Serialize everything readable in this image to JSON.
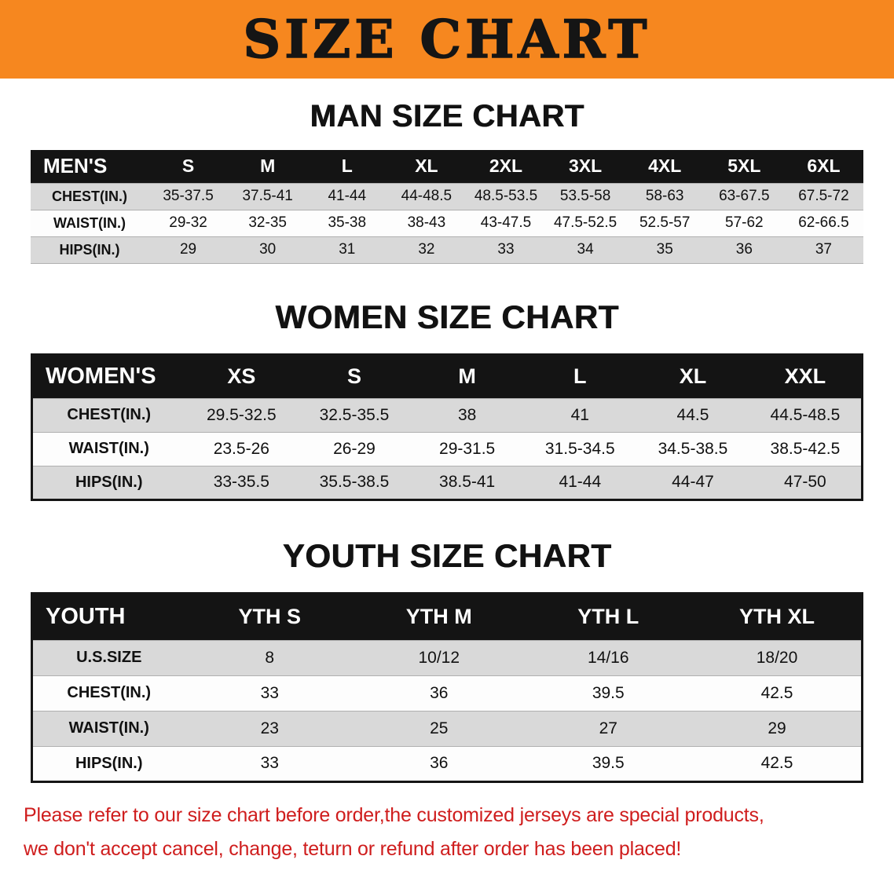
{
  "banner": {
    "title": "SIZE CHART"
  },
  "colors": {
    "banner_bg": "#f6871f",
    "header_bg": "#141414",
    "stripe": "#d9d9d9",
    "disclaimer": "#cf1d1d"
  },
  "men": {
    "heading": "MAN SIZE CHART",
    "table": {
      "header": [
        "MEN'S",
        "S",
        "M",
        "L",
        "XL",
        "2XL",
        "3XL",
        "4XL",
        "5XL",
        "6XL"
      ],
      "rows": [
        [
          "CHEST(IN.)",
          "35-37.5",
          "37.5-41",
          "41-44",
          "44-48.5",
          "48.5-53.5",
          "53.5-58",
          "58-63",
          "63-67.5",
          "67.5-72"
        ],
        [
          "WAIST(IN.)",
          "29-32",
          "32-35",
          "35-38",
          "38-43",
          "43-47.5",
          "47.5-52.5",
          "52.5-57",
          "57-62",
          "62-66.5"
        ],
        [
          "HIPS(IN.)",
          "29",
          "30",
          "31",
          "32",
          "33",
          "34",
          "35",
          "36",
          "37"
        ]
      ]
    }
  },
  "women": {
    "heading": "WOMEN SIZE CHART",
    "table": {
      "header": [
        "WOMEN'S",
        "XS",
        "S",
        "M",
        "L",
        "XL",
        "XXL"
      ],
      "rows": [
        [
          "CHEST(IN.)",
          "29.5-32.5",
          "32.5-35.5",
          "38",
          "41",
          "44.5",
          "44.5-48.5"
        ],
        [
          "WAIST(IN.)",
          "23.5-26",
          "26-29",
          "29-31.5",
          "31.5-34.5",
          "34.5-38.5",
          "38.5-42.5"
        ],
        [
          "HIPS(IN.)",
          "33-35.5",
          "35.5-38.5",
          "38.5-41",
          "41-44",
          "44-47",
          "47-50"
        ]
      ]
    }
  },
  "youth": {
    "heading": "YOUTH SIZE CHART",
    "table": {
      "header": [
        "YOUTH",
        "YTH S",
        "YTH M",
        "YTH L",
        "YTH XL"
      ],
      "rows": [
        [
          "U.S.SIZE",
          "8",
          "10/12",
          "14/16",
          "18/20"
        ],
        [
          "CHEST(IN.)",
          "33",
          "36",
          "39.5",
          "42.5"
        ],
        [
          "WAIST(IN.)",
          "23",
          "25",
          "27",
          "29"
        ],
        [
          "HIPS(IN.)",
          "33",
          "36",
          "39.5",
          "42.5"
        ]
      ]
    }
  },
  "disclaimer": {
    "line1": "Please refer to our size chart before order,the customized jerseys are special products,",
    "line2": "we don't accept cancel, change, teturn or refund after order has been placed!"
  }
}
